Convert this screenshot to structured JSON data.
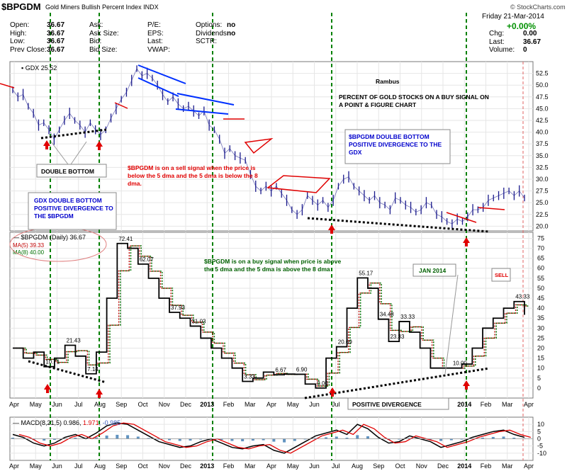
{
  "header": {
    "symbol": "$BPGDM",
    "name": "Gold Miners Bullish Percent Index",
    "exchange": "INDX",
    "brand": "© StockCharts.com",
    "date": "Friday 21-Mar-2014",
    "change_pct": "+0.00%",
    "quote": [
      {
        "label": "Open:",
        "value": "36.67"
      },
      {
        "label": "High:",
        "value": "36.67"
      },
      {
        "label": "Low:",
        "value": "36.67"
      },
      {
        "label": "Prev Close:",
        "value": "36.67"
      }
    ],
    "quote2": [
      {
        "label": "Ask:",
        "value": ""
      },
      {
        "label": "Ask Size:",
        "value": ""
      },
      {
        "label": "Bid:",
        "value": ""
      },
      {
        "label": "Bid Size:",
        "value": ""
      }
    ],
    "quote3": [
      {
        "label": "P/E:",
        "value": ""
      },
      {
        "label": "EPS:",
        "value": ""
      },
      {
        "label": "Last:",
        "value": ""
      },
      {
        "label": "VWAP:",
        "value": ""
      }
    ],
    "quote4": [
      {
        "label": "Options:",
        "value": "no"
      },
      {
        "label": "Dividends:",
        "value": "no"
      },
      {
        "label": "SCTR:",
        "value": ""
      }
    ],
    "right": [
      {
        "label": "Chg:",
        "value": "0.00"
      },
      {
        "label": "Last:",
        "value": "36.67"
      },
      {
        "label": "Volume:",
        "value": "0"
      }
    ]
  },
  "colors": {
    "price": "#1a1a8c",
    "bpgdm": "#000000",
    "ma5": "#c00000",
    "ma8": "#007000",
    "macd": "#000000",
    "signal": "#e00000",
    "hist": "#3a78b0",
    "signal_line": "#008000",
    "annot_red": "#e00000",
    "annot_green": "#006000",
    "annot_blue": "#0000cc",
    "sell_line": "#e06060"
  },
  "chart_data": [
    {
      "type": "line",
      "legend": "GDX 25.52",
      "ylim": [
        19,
        55
      ],
      "yticks": [
        20.0,
        22.5,
        25.0,
        27.5,
        30.0,
        32.5,
        35.0,
        37.5,
        40.0,
        42.5,
        45.0,
        47.5,
        50.0,
        52.5
      ],
      "x": [
        0,
        0.5,
        1,
        1.5,
        2,
        2.5,
        3,
        3.5,
        4,
        4.5,
        5,
        5.5,
        6,
        6.5,
        7,
        7.5,
        8,
        8.5,
        9,
        9.5,
        10,
        10.5,
        11,
        11.5,
        12,
        12.5,
        13,
        13.5,
        14,
        14.5,
        15,
        15.5,
        16,
        16.5,
        17,
        17.5,
        18,
        18.5,
        19,
        19.5,
        20,
        20.5,
        21,
        21.5,
        22,
        22.5,
        23,
        23.5,
        24,
        24.5,
        25,
        25.5,
        26,
        26.5,
        27,
        27.5,
        28,
        28.5,
        29,
        29.5,
        30,
        30.5,
        31,
        31.5,
        32,
        32.5,
        33,
        33.5,
        34,
        34.5,
        35,
        35.5,
        36,
        36.5,
        37,
        37.5,
        38,
        38.5,
        39,
        39.5,
        40,
        40.5,
        41,
        41.5,
        42,
        42.5,
        43,
        43.5,
        44,
        44.5,
        45,
        45.5,
        46,
        46.5,
        47,
        47.5,
        48,
        48.5,
        49,
        49.5
      ],
      "values": [
        49,
        47.5,
        48,
        45.5,
        44,
        41.5,
        42,
        40.5,
        38.5,
        40.5,
        42.5,
        44,
        42.5,
        41.5,
        40,
        42,
        40.5,
        39.5,
        40.5,
        43,
        45,
        47,
        48.5,
        51,
        53.5,
        52,
        52.5,
        51.5,
        50,
        48,
        46.5,
        47.5,
        46,
        45,
        45.5,
        44.5,
        43.5,
        44.5,
        41.5,
        40.5,
        38.5,
        35.5,
        36.5,
        35,
        34.5,
        34,
        31,
        28.5,
        27.5,
        28.5,
        27.5,
        28.5,
        27,
        25.5,
        23.5,
        22.5,
        23.5,
        26.5,
        25.5,
        24.5,
        25.5,
        24,
        25.5,
        28.5,
        30,
        30.5,
        28.5,
        27.5,
        26.5,
        25.5,
        26.5,
        25,
        24.5,
        23.5,
        26,
        25.5,
        24.5,
        24,
        23,
        23.5,
        25,
        24.5,
        22.5,
        22,
        21,
        20.5,
        21.5,
        21,
        22,
        23.5,
        23.5,
        24,
        25.5,
        26,
        26.5,
        27,
        27.5,
        26.5,
        27.5,
        26
      ]
    },
    {
      "type": "line",
      "legend": [
        "$BPGDM (Daily) 36.67",
        "MA(5) 39.33",
        "MA(8) 40.00"
      ],
      "ylim": [
        -5,
        78
      ],
      "yticks": [
        0,
        5,
        10,
        15,
        20,
        25,
        30,
        35,
        40,
        45,
        50,
        55,
        60,
        65,
        70,
        75
      ],
      "x": [
        0,
        1,
        2,
        3,
        4,
        5,
        6,
        7,
        8,
        9,
        10,
        11,
        12,
        13,
        14,
        15,
        16,
        17,
        18,
        19,
        20,
        21,
        22,
        23,
        24,
        25,
        26,
        27,
        28,
        29,
        30,
        31,
        32,
        33,
        34,
        35,
        36,
        37,
        38,
        39,
        40,
        41,
        42,
        43,
        44,
        45,
        46,
        47,
        48,
        49
      ],
      "values": [
        20,
        15,
        18,
        10.71,
        15,
        21.43,
        16,
        7.14,
        18,
        45,
        72.41,
        70,
        62.07,
        55,
        45,
        37.93,
        35,
        31.03,
        25,
        20,
        15,
        10,
        3.33,
        5,
        8,
        6.67,
        7,
        6.9,
        2,
        0,
        15,
        20.69,
        40,
        55.17,
        50,
        34.48,
        23.33,
        33.33,
        28,
        20,
        10,
        10,
        10.0,
        12,
        20,
        30,
        35,
        40,
        43.33,
        36.67
      ],
      "labels": [
        "10.71",
        "21.43",
        "7.14",
        "72.41",
        "62.07",
        "37.93",
        "31.03",
        "3.33",
        "6.67",
        "6.90",
        "0.00",
        "20.69",
        "55.17",
        "34.48",
        "23.33",
        "33.33",
        "10.00",
        "43.33"
      ]
    },
    {
      "type": "line",
      "legend": [
        "MACD(8,21,5) 0.986",
        "1.971",
        "-0.985"
      ],
      "ylim": [
        -15,
        15
      ],
      "yticks": [
        -10,
        -5,
        0,
        5,
        10
      ],
      "x": [
        0,
        1,
        2,
        3,
        4,
        5,
        6,
        7,
        8,
        9,
        10,
        11,
        12,
        13,
        14,
        15,
        16,
        17,
        18,
        19,
        20,
        21,
        22,
        23,
        24,
        25,
        26,
        27,
        28,
        29,
        30,
        31,
        32,
        33,
        34,
        35,
        36,
        37,
        38,
        39,
        40,
        41,
        42,
        43,
        44,
        45,
        46,
        47,
        48,
        49
      ],
      "values": [
        3,
        1,
        -3,
        -5,
        -3,
        1,
        3,
        0,
        4,
        9,
        11,
        10,
        6,
        2,
        -2,
        -4,
        -6,
        -5,
        -2,
        0,
        -3,
        -6,
        -7,
        -5,
        -4,
        -8,
        -10,
        -6,
        -2,
        2,
        4,
        6,
        3,
        10,
        7,
        1,
        -3,
        -2,
        2,
        0,
        -2,
        -6,
        -4,
        -2,
        1,
        3,
        5,
        6,
        3,
        1
      ]
    }
  ],
  "x_axis": {
    "labels": [
      "Apr",
      "May",
      "Jun",
      "Jul",
      "Aug",
      "Sep",
      "Oct",
      "Nov",
      "Dec",
      "2013",
      "Feb",
      "Mar",
      "Apr",
      "May",
      "Jun",
      "Jul",
      "Aug",
      "Sep",
      "Oct",
      "Nov",
      "Dec",
      "2014",
      "Feb",
      "Mar",
      "Apr"
    ]
  },
  "annotations": {
    "rambus": "Rambus",
    "percent_gold": "PERCENT OF GOLD STOCKS ON A BUY SIGNAL ON A POINT & FIGURE CHART",
    "bpgdm_double_bottom": "$BPGDM DOULBE BOTTOM POSITIVE DIVERGENCE TO THE GDX",
    "sell_signal": "$BPGDM is on a sell signal when the price is below the 5 dma and the 5 dma is below the 8 dma.",
    "double_bottom": "DOUBLE BOTTOM",
    "gdx_double_bottom": "GDX DOUBLE BOTTOM POSITIVE DIVERGENCE TO THE $BPGDM",
    "buy_signal": "$BPGDM is on a buy signal when price is above the 5 dma and the 5 dma is above the 8 dma",
    "jan_2014": "JAN 2014",
    "sell": "SELL",
    "positive_divergence": "POSITIVE DIVERGENCE"
  }
}
